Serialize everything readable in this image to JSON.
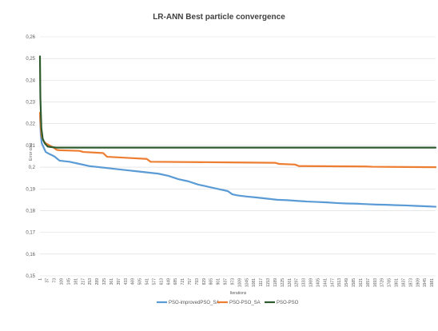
{
  "chart_data": {
    "type": "line",
    "title": "LR-ANN Best particle convergence",
    "xlabel": "Iterations",
    "ylabel": "Error cost",
    "xlim": [
      1,
      2000
    ],
    "ylim": [
      0.15,
      0.26
    ],
    "y_ticks": [
      0.15,
      0.16,
      0.17,
      0.18,
      0.19,
      0.2,
      0.21,
      0.22,
      0.23,
      0.24,
      0.25,
      0.26
    ],
    "y_tick_labels": [
      "0,15",
      "0,16",
      "0,17",
      "0,18",
      "0,19",
      "0,2",
      "0,21",
      "0,22",
      "0,23",
      "0,24",
      "0,25",
      "0,26"
    ],
    "x_tick_labels": [
      "1",
      "37",
      "73",
      "109",
      "145",
      "181",
      "217",
      "253",
      "289",
      "325",
      "361",
      "397",
      "433",
      "469",
      "505",
      "541",
      "577",
      "613",
      "649",
      "685",
      "721",
      "757",
      "793",
      "829",
      "865",
      "901",
      "937",
      "973",
      "1009",
      "1045",
      "1081",
      "1117",
      "1153",
      "1189",
      "1225",
      "1261",
      "1297",
      "1333",
      "1369",
      "1405",
      "1441",
      "1477",
      "1513",
      "1549",
      "1585",
      "1621",
      "1657",
      "1693",
      "1729",
      "1765",
      "1801",
      "1837",
      "1873",
      "1909",
      "1945",
      "1981"
    ],
    "grid": "horizontal",
    "legend_position": "bottom",
    "series": [
      {
        "name": "PSO-improvedPSO_SA",
        "color": "#5b9bd5",
        "x": [
          1,
          5,
          10,
          20,
          30,
          50,
          73,
          100,
          150,
          200,
          250,
          300,
          350,
          400,
          450,
          500,
          550,
          600,
          650,
          700,
          750,
          800,
          850,
          900,
          950,
          973,
          1000,
          1045,
          1100,
          1150,
          1200,
          1250,
          1300,
          1350,
          1400,
          1450,
          1500,
          1550,
          1600,
          1650,
          1700,
          1750,
          1800,
          1850,
          1900,
          1950,
          2000
        ],
        "y": [
          0.224,
          0.215,
          0.211,
          0.209,
          0.207,
          0.206,
          0.205,
          0.203,
          0.2025,
          0.2015,
          0.2005,
          0.2,
          0.1995,
          0.199,
          0.1985,
          0.198,
          0.1975,
          0.197,
          0.196,
          0.1945,
          0.1935,
          0.192,
          0.191,
          0.19,
          0.189,
          0.1875,
          0.187,
          0.1865,
          0.186,
          0.1855,
          0.185,
          0.1848,
          0.1845,
          0.1842,
          0.184,
          0.1838,
          0.1835,
          0.1833,
          0.1832,
          0.183,
          0.1828,
          0.1827,
          0.1825,
          0.1824,
          0.1822,
          0.182,
          0.1818
        ]
      },
      {
        "name": "PSO-PSO_SA",
        "color": "#ed7d31",
        "x": [
          1,
          5,
          10,
          20,
          30,
          50,
          70,
          85,
          100,
          200,
          220,
          320,
          340,
          460,
          540,
          560,
          960,
          1190,
          1210,
          1290,
          1310,
          1650,
          1680,
          2000
        ],
        "y": [
          0.225,
          0.218,
          0.214,
          0.212,
          0.211,
          0.21,
          0.209,
          0.208,
          0.2078,
          0.2075,
          0.207,
          0.2065,
          0.2048,
          0.2042,
          0.2038,
          0.2025,
          0.2022,
          0.202,
          0.2015,
          0.2012,
          0.2005,
          0.2003,
          0.2002,
          0.2
        ]
      },
      {
        "name": "PSO-PSO",
        "color": "#2e5b2e",
        "x": [
          1,
          3,
          8,
          15,
          25,
          40,
          60,
          85,
          120,
          200,
          500,
          1000,
          1500,
          2000
        ],
        "y": [
          0.251,
          0.232,
          0.218,
          0.213,
          0.211,
          0.2095,
          0.2092,
          0.209,
          0.209,
          0.209,
          0.209,
          0.209,
          0.209,
          0.209
        ]
      }
    ]
  }
}
